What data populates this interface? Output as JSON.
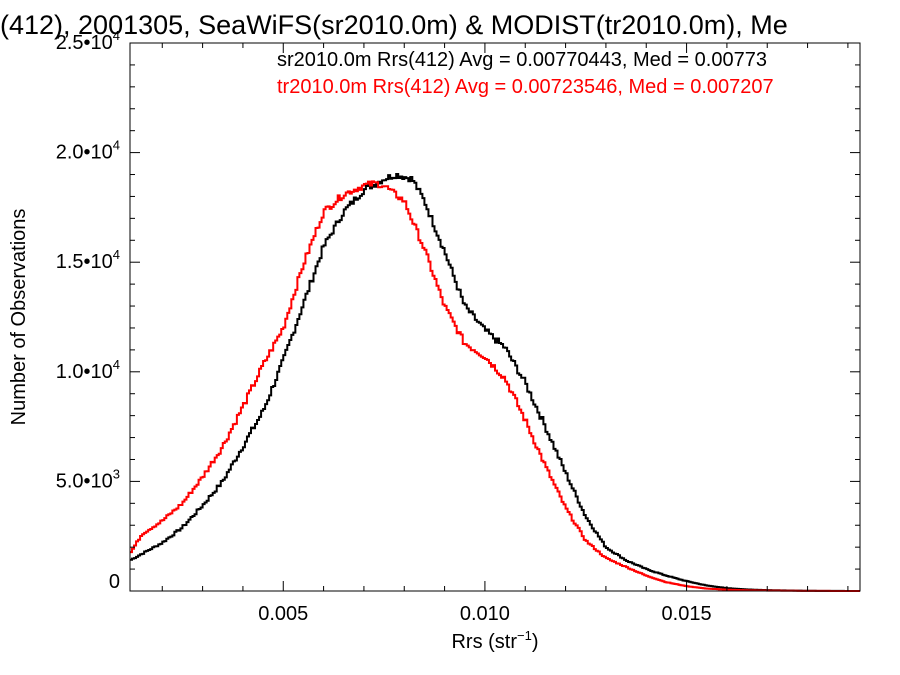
{
  "chart_data": {
    "type": "line",
    "style": "histogram-step",
    "title": "(412), 2001305, SeaWiFS(sr2010.0m) & MODIST(tr2010.0m), Me",
    "xlabel": "Rrs (str",
    "xlabel_sup": "−1",
    "xlabel_end": ")",
    "ylabel": "Number of Observations",
    "xlim": [
      0.0012,
      0.0193
    ],
    "ylim": [
      0,
      25000
    ],
    "x_ticks": [
      {
        "value": 0.005,
        "label": "0.005"
      },
      {
        "value": 0.01,
        "label": "0.010"
      },
      {
        "value": 0.015,
        "label": "0.015"
      }
    ],
    "y_ticks": [
      {
        "value": 0,
        "base": "0",
        "exp": ""
      },
      {
        "value": 5000,
        "base": "5.0•10",
        "exp": "3"
      },
      {
        "value": 10000,
        "base": "1.0•10",
        "exp": "4"
      },
      {
        "value": 15000,
        "base": "1.5•10",
        "exp": "4"
      },
      {
        "value": 20000,
        "base": "2.0•10",
        "exp": "4"
      },
      {
        "value": 25000,
        "base": "2.5•10",
        "exp": "4"
      }
    ],
    "grid": false,
    "legend_position": "top-right",
    "annotations": [
      {
        "text": "sr2010.0m Rrs(412) Avg = 0.00770443, Med = 0.00773",
        "color": "#000000"
      },
      {
        "text": "tr2010.0m Rrs(412) Avg = 0.00723546, Med = 0.007207",
        "color": "#ff0000"
      }
    ],
    "series": [
      {
        "color": "#000000",
        "x": [
          0.0012,
          0.0015,
          0.002,
          0.0025,
          0.003,
          0.0035,
          0.004,
          0.0045,
          0.005,
          0.0055,
          0.006,
          0.0065,
          0.007,
          0.0075,
          0.0078,
          0.008,
          0.0082,
          0.0085,
          0.009,
          0.0095,
          0.01,
          0.0105,
          0.011,
          0.0115,
          0.012,
          0.0125,
          0.013,
          0.0135,
          0.014,
          0.0145,
          0.015,
          0.0155,
          0.016,
          0.0165,
          0.017,
          0.018,
          0.0193
        ],
        "values": [
          1400,
          1700,
          2200,
          2900,
          3900,
          5000,
          6600,
          8200,
          10500,
          13100,
          15700,
          17300,
          18300,
          18800,
          19000,
          18900,
          18800,
          17800,
          15500,
          13000,
          11900,
          11100,
          9500,
          7500,
          5400,
          3400,
          2000,
          1400,
          1000,
          700,
          450,
          250,
          130,
          70,
          40,
          10,
          0
        ]
      },
      {
        "color": "#ff0000",
        "x": [
          0.0012,
          0.0015,
          0.002,
          0.0025,
          0.003,
          0.0035,
          0.004,
          0.0045,
          0.005,
          0.0055,
          0.006,
          0.0065,
          0.007,
          0.0073,
          0.0075,
          0.0077,
          0.008,
          0.0085,
          0.009,
          0.0095,
          0.01,
          0.0105,
          0.011,
          0.0115,
          0.012,
          0.0125,
          0.013,
          0.0135,
          0.014,
          0.0145,
          0.015,
          0.0155,
          0.016,
          0.0165,
          0.017,
          0.018,
          0.0193
        ],
        "values": [
          1700,
          2600,
          3200,
          4000,
          5200,
          6600,
          8400,
          10300,
          12000,
          14900,
          17300,
          18100,
          18500,
          18600,
          18500,
          18200,
          17800,
          15600,
          13000,
          11300,
          10700,
          9700,
          7800,
          5700,
          3800,
          2300,
          1500,
          1100,
          700,
          400,
          220,
          110,
          60,
          30,
          20,
          5,
          0
        ]
      }
    ]
  }
}
